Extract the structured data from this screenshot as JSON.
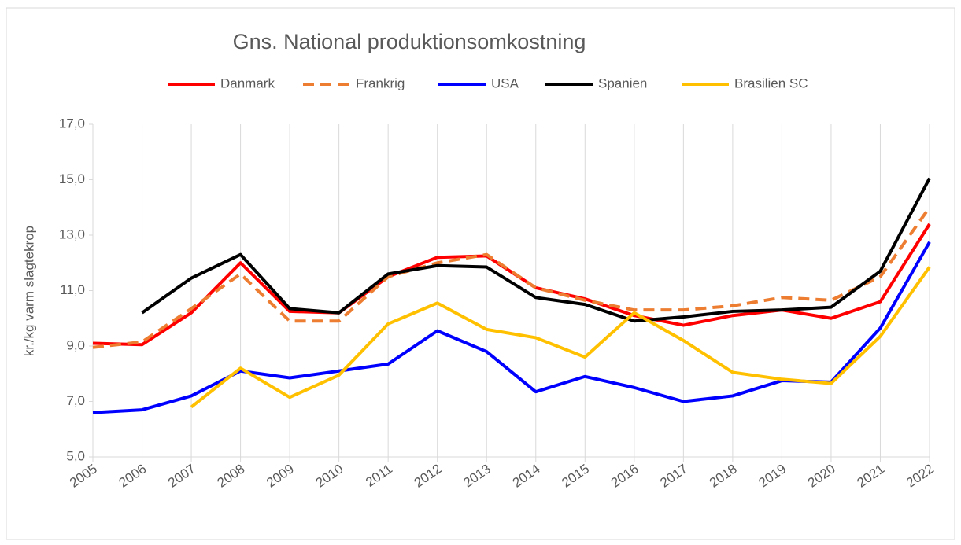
{
  "chart_data": {
    "type": "line",
    "title": "Gns. National produktionsomkostning",
    "y_label": "kr./kg varm slagtekrop",
    "categories": [
      "2005",
      "2006",
      "2007",
      "2008",
      "2009",
      "2010",
      "2011",
      "2012",
      "2013",
      "2014",
      "2015",
      "2016",
      "2017",
      "2018",
      "2019",
      "2020",
      "2021",
      "2022"
    ],
    "series": [
      {
        "name": "Danmark",
        "color": "#ff0000",
        "dash": false,
        "values": [
          9.1,
          9.05,
          10.2,
          12.0,
          10.25,
          10.2,
          11.5,
          12.2,
          12.25,
          11.1,
          10.7,
          10.1,
          9.75,
          10.1,
          10.3,
          10.0,
          10.6,
          13.4
        ]
      },
      {
        "name": "Frankrig",
        "color": "#ed7d31",
        "dash": true,
        "values": [
          8.95,
          9.15,
          10.35,
          11.6,
          9.9,
          9.9,
          11.5,
          12.0,
          12.3,
          11.1,
          10.65,
          10.3,
          10.3,
          10.45,
          10.75,
          10.65,
          11.5,
          14.0
        ]
      },
      {
        "name": "USA",
        "color": "#0000ff",
        "dash": false,
        "values": [
          6.6,
          6.7,
          7.2,
          8.1,
          7.85,
          8.1,
          8.35,
          9.55,
          8.8,
          7.35,
          7.9,
          7.5,
          7.0,
          7.2,
          7.75,
          7.7,
          9.65,
          12.75
        ]
      },
      {
        "name": "Spanien",
        "color": "#000000",
        "dash": false,
        "values": [
          null,
          10.2,
          11.45,
          12.3,
          10.35,
          10.2,
          11.6,
          11.9,
          11.85,
          10.75,
          10.5,
          9.9,
          10.05,
          10.25,
          10.3,
          10.4,
          11.7,
          15.05
        ]
      },
      {
        "name": "Brasilien SC",
        "color": "#ffc000",
        "dash": false,
        "values": [
          null,
          null,
          6.8,
          8.2,
          7.15,
          7.95,
          9.8,
          10.55,
          9.6,
          9.3,
          8.6,
          10.2,
          9.2,
          8.05,
          7.8,
          7.65,
          9.35,
          11.85
        ]
      }
    ],
    "ylim": [
      5,
      17
    ],
    "yticks": [
      {
        "value": 5,
        "label": "5,0"
      },
      {
        "value": 7,
        "label": "7,0"
      },
      {
        "value": 9,
        "label": "9,0"
      },
      {
        "value": 11,
        "label": "11,0"
      },
      {
        "value": 13,
        "label": "13,0"
      },
      {
        "value": 15,
        "label": "15,0"
      },
      {
        "value": 17,
        "label": "17,0"
      }
    ],
    "grid": "vertical",
    "legend": "top"
  }
}
